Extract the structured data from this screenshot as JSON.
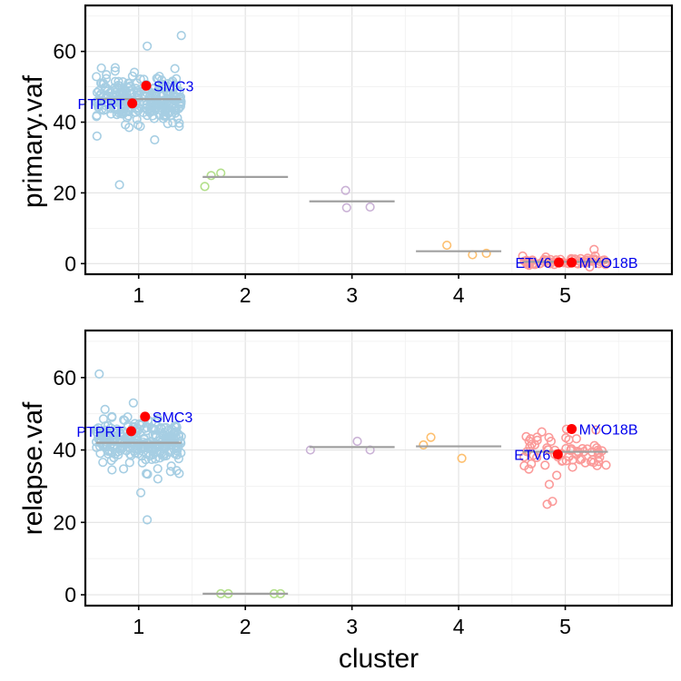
{
  "chart_data": [
    {
      "type": "scatter",
      "ylabel": "primary.vaf",
      "xlabel": "",
      "xlim": [
        0.5,
        6.0
      ],
      "ylim": [
        -3,
        73
      ],
      "x_ticks": [
        1,
        2,
        3,
        4,
        5
      ],
      "y_ticks": [
        0,
        20,
        40,
        60
      ],
      "grid": true,
      "clusters": [
        {
          "cluster": 1,
          "color": "#a6cee3",
          "center": 46.5,
          "spread": 3.0,
          "n": 260,
          "outliers": [
            [
              1.4,
              64.5
            ],
            [
              1.08,
              61.5
            ],
            [
              0.82,
              22.3
            ],
            [
              1.15,
              35.0
            ],
            [
              0.91,
              38.5
            ],
            [
              1.38,
              38.8
            ],
            [
              0.65,
              55.3
            ],
            [
              0.78,
              55.4
            ],
            [
              0.96,
              54.1
            ],
            [
              1.17,
              52.4
            ]
          ]
        },
        {
          "cluster": 2,
          "color": "#b2df8a",
          "center": 24.5,
          "points": [
            [
              1.62,
              21.8
            ],
            [
              1.68,
              24.9
            ],
            [
              1.77,
              25.6
            ]
          ]
        },
        {
          "cluster": 3,
          "color": "#cab2d6",
          "center": 17.6,
          "points": [
            [
              2.94,
              20.7
            ],
            [
              2.95,
              15.8
            ],
            [
              3.17,
              16.0
            ]
          ]
        },
        {
          "cluster": 4,
          "color": "#fdbf6f",
          "center": 3.5,
          "points": [
            [
              3.89,
              5.2
            ],
            [
              4.13,
              2.5
            ],
            [
              4.26,
              2.9
            ]
          ]
        },
        {
          "cluster": 5,
          "color": "#fb9a99",
          "center": 0.5,
          "spread": 0.6,
          "n": 65,
          "outliers": [
            [
              5.27,
              4.0
            ]
          ]
        }
      ],
      "drivers": [
        {
          "gene": "SMC3",
          "x": 1.07,
          "y": 50.3,
          "label_side": "right"
        },
        {
          "gene": "PTPRT",
          "x": 0.94,
          "y": 45.3,
          "label_side": "left"
        },
        {
          "gene": "ETV6",
          "x": 4.94,
          "y": 0.3,
          "label_side": "left"
        },
        {
          "gene": "MYO18B",
          "x": 5.06,
          "y": 0.3,
          "label_side": "right"
        }
      ]
    },
    {
      "type": "scatter",
      "ylabel": "relapse.vaf",
      "xlabel": "cluster",
      "xlim": [
        0.5,
        6.0
      ],
      "ylim": [
        -3,
        73
      ],
      "x_ticks": [
        1,
        2,
        3,
        4,
        5
      ],
      "y_ticks": [
        0,
        20,
        40,
        60
      ],
      "grid": true,
      "clusters": [
        {
          "cluster": 1,
          "color": "#a6cee3",
          "center": 42.0,
          "spread": 3.0,
          "n": 260,
          "outliers": [
            [
              0.63,
              61.0
            ],
            [
              0.95,
              53.0
            ],
            [
              1.08,
              20.7
            ],
            [
              1.02,
              28.2
            ],
            [
              1.18,
              32.0
            ],
            [
              1.38,
              33.5
            ],
            [
              0.75,
              34.5
            ]
          ]
        },
        {
          "cluster": 2,
          "color": "#b2df8a",
          "center": 0.3,
          "points": [
            [
              1.77,
              0.3
            ],
            [
              1.84,
              0.3
            ],
            [
              2.27,
              0.3
            ],
            [
              2.33,
              0.3
            ]
          ]
        },
        {
          "cluster": 3,
          "color": "#cab2d6",
          "center": 40.8,
          "points": [
            [
              2.61,
              40.0
            ],
            [
              3.05,
              42.4
            ],
            [
              3.17,
              40.0
            ]
          ]
        },
        {
          "cluster": 4,
          "color": "#fdbf6f",
          "center": 41.0,
          "points": [
            [
              3.67,
              41.4
            ],
            [
              3.74,
              43.5
            ],
            [
              4.03,
              37.7
            ]
          ]
        },
        {
          "cluster": 5,
          "color": "#fb9a99",
          "center": 39.5,
          "spread": 2.5,
          "n": 65,
          "outliers": [
            [
              4.88,
              25.8
            ],
            [
              4.83,
              25.0
            ],
            [
              4.85,
              30.5
            ],
            [
              4.92,
              33.0
            ],
            [
              4.78,
              45.0
            ]
          ]
        }
      ],
      "drivers": [
        {
          "gene": "SMC3",
          "x": 1.06,
          "y": 49.2,
          "label_side": "right"
        },
        {
          "gene": "PTPRT",
          "x": 0.93,
          "y": 45.2,
          "label_side": "left"
        },
        {
          "gene": "ETV6",
          "x": 4.93,
          "y": 38.8,
          "label_side": "left"
        },
        {
          "gene": "MYO18B",
          "x": 5.06,
          "y": 45.8,
          "label_side": "right"
        }
      ]
    }
  ]
}
